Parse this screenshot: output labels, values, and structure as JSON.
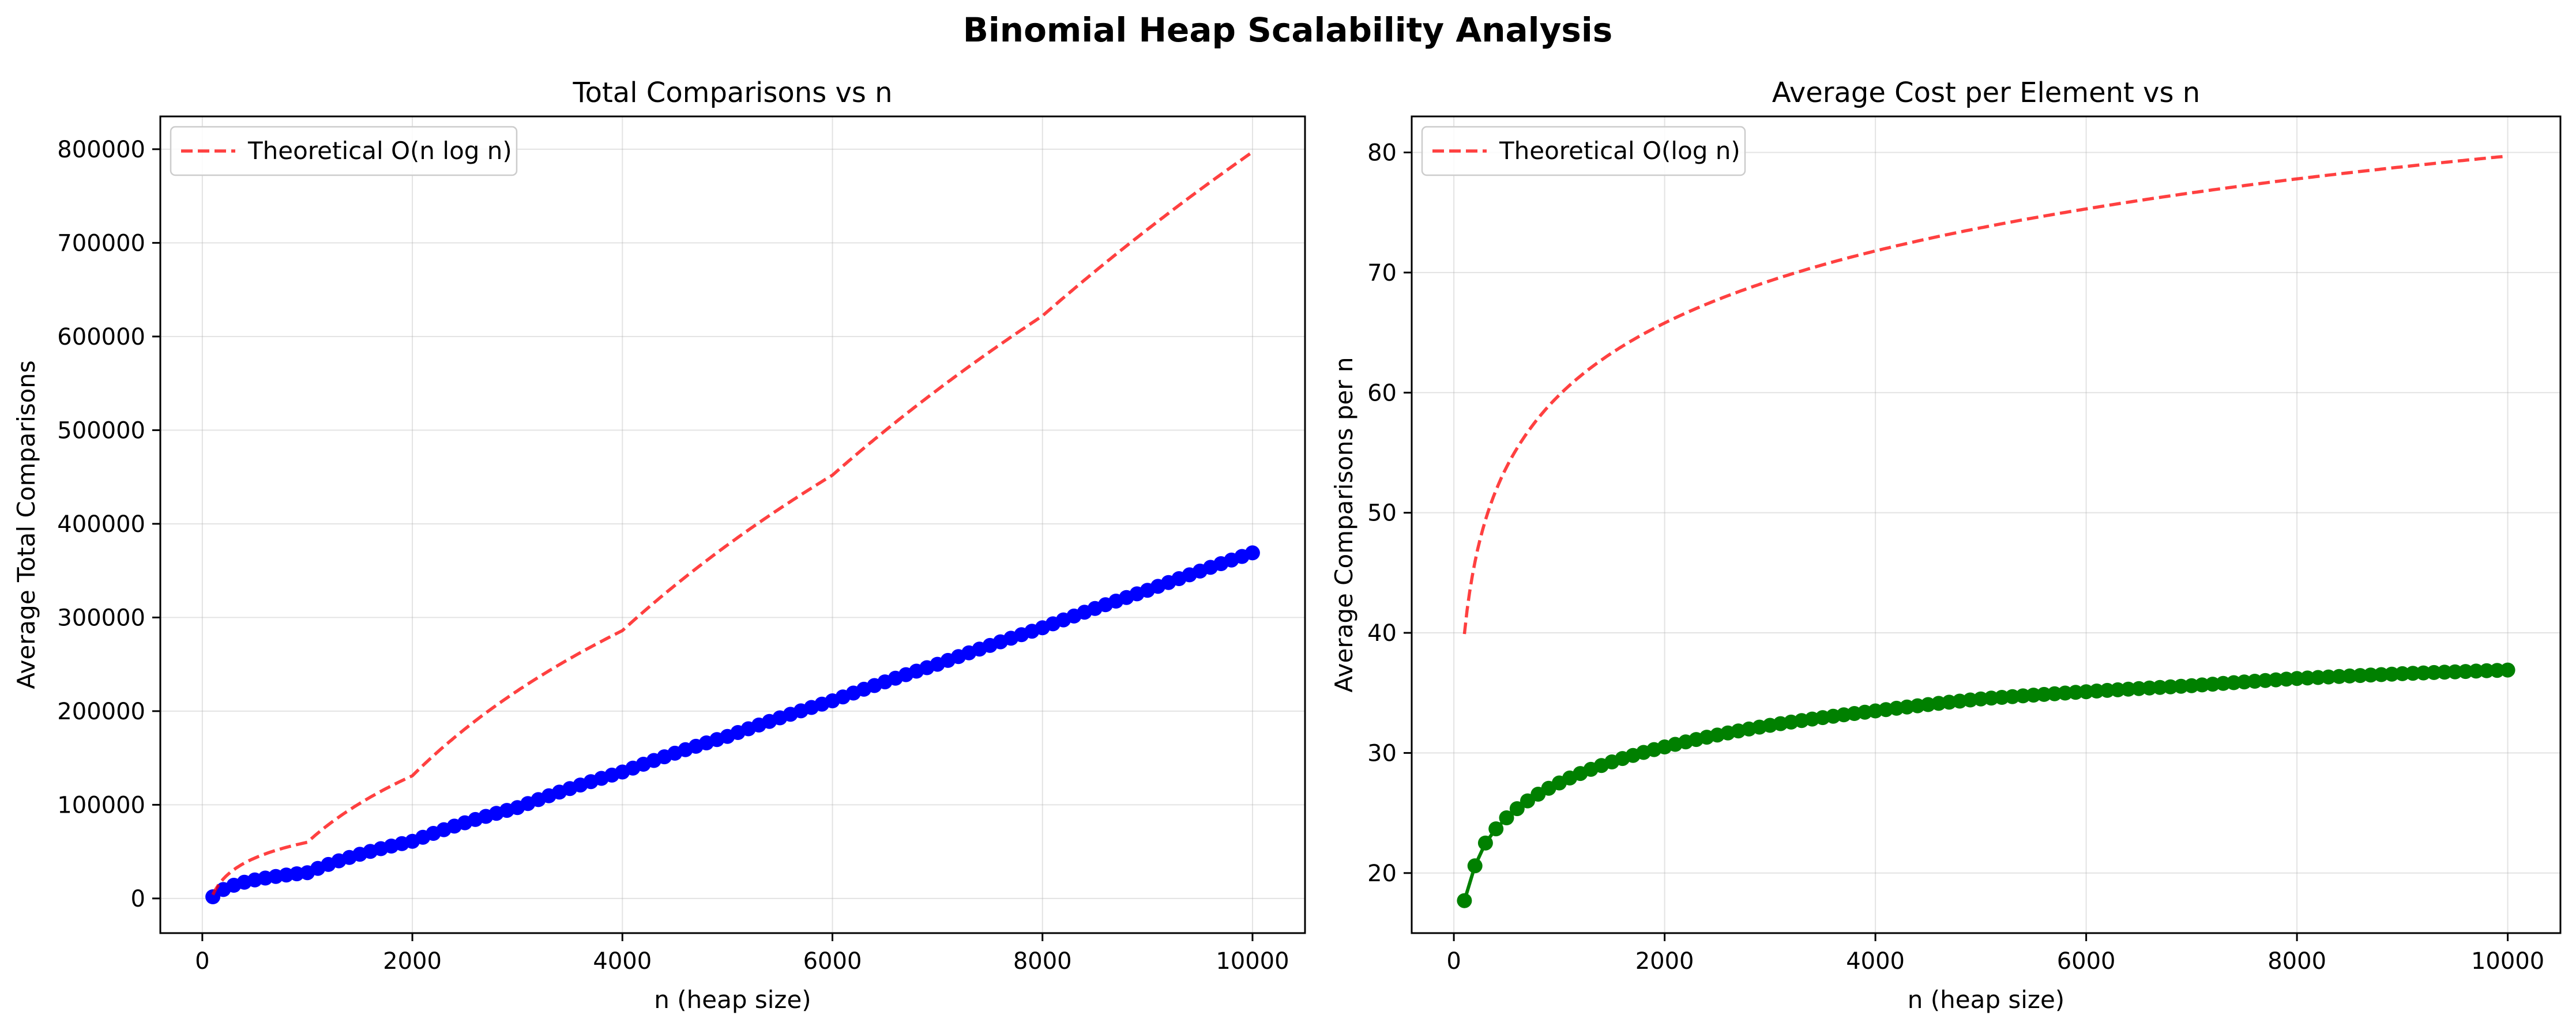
{
  "figure": {
    "title": "Binomial Heap Scalability Analysis"
  },
  "chart_data": [
    {
      "type": "line",
      "title": "Total Comparisons vs n",
      "xlabel": "n (heap size)",
      "ylabel": "Average Total Comparisons",
      "xlim": [
        -400,
        10500
      ],
      "ylim": [
        -37000,
        835000
      ],
      "xticks": [
        0,
        2000,
        4000,
        6000,
        8000,
        10000
      ],
      "yticks": [
        0,
        100000,
        200000,
        300000,
        400000,
        500000,
        600000,
        700000,
        800000
      ],
      "grid": true,
      "legend_position": "top-left",
      "series": [
        {
          "name": "",
          "style": "solid-markers",
          "color": "#0000ff",
          "x_start": 100,
          "x_end": 10000,
          "x_step": 100,
          "model": "values read from curve: ~1770 at n=100, ~369000 at n=10000 (approx. linear growth)",
          "key_points": [
            [
              100,
              1770
            ],
            [
              1000,
              27500
            ],
            [
              2000,
              61000
            ],
            [
              3000,
              97000
            ],
            [
              4000,
              135000
            ],
            [
              5000,
              173000
            ],
            [
              6000,
              211000
            ],
            [
              7000,
              250000
            ],
            [
              8000,
              289000
            ],
            [
              9000,
              329000
            ],
            [
              10000,
              369000
            ]
          ]
        },
        {
          "name": "Theoretical O(n log n)",
          "style": "dashed",
          "color": "#ff0000",
          "x_start": 100,
          "x_end": 10000,
          "key_points": [
            [
              100,
              4000
            ],
            [
              1000,
              60000
            ],
            [
              2000,
              131000
            ],
            [
              4000,
              286000
            ],
            [
              6000,
              452000
            ],
            [
              8000,
              622000
            ],
            [
              10000,
              797000
            ]
          ]
        }
      ]
    },
    {
      "type": "line",
      "title": "Average Cost per Element vs n",
      "xlabel": "n (heap size)",
      "ylabel": "Average Comparisons per n",
      "xlim": [
        -400,
        10500
      ],
      "ylim": [
        15,
        83
      ],
      "xticks": [
        0,
        2000,
        4000,
        6000,
        8000,
        10000
      ],
      "yticks": [
        20,
        30,
        40,
        50,
        60,
        70,
        80
      ],
      "grid": true,
      "legend_position": "top-left",
      "series": [
        {
          "name": "",
          "style": "solid-markers",
          "color": "#008000",
          "x_start": 100,
          "x_end": 10000,
          "x_step": 100,
          "key_points": [
            [
              100,
              17.7
            ],
            [
              200,
              20.6
            ],
            [
              300,
              22.5
            ],
            [
              500,
              24.6
            ],
            [
              1000,
              27.5
            ],
            [
              2000,
              30.5
            ],
            [
              3000,
              32.3
            ],
            [
              4000,
              33.5
            ],
            [
              5000,
              34.5
            ],
            [
              6000,
              35.1
            ],
            [
              7000,
              35.6
            ],
            [
              8000,
              36.2
            ],
            [
              9000,
              36.6
            ],
            [
              10000,
              36.9
            ]
          ]
        },
        {
          "name": "Theoretical O(log n)",
          "style": "dashed",
          "color": "#ff0000",
          "x_start": 100,
          "x_end": 10000,
          "key_points": [
            [
              100,
              39.9
            ],
            [
              200,
              45.9
            ],
            [
              500,
              53.8
            ],
            [
              1000,
              59.8
            ],
            [
              2000,
              65.8
            ],
            [
              4000,
              71.8
            ],
            [
              6000,
              75.3
            ],
            [
              8000,
              77.8
            ],
            [
              10000,
              79.7
            ]
          ]
        }
      ]
    }
  ]
}
